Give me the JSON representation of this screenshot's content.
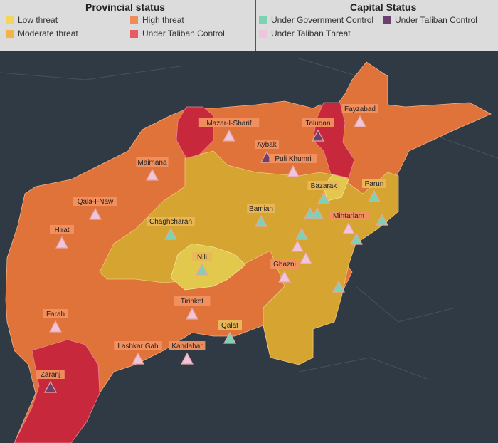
{
  "legend": {
    "provincial_title": "Provincial status",
    "capital_title": "Capital Status",
    "provincial_items": [
      {
        "label": "Low threat",
        "color": "#f2d55a"
      },
      {
        "label": "High threat",
        "color": "#f08c5a"
      },
      {
        "label": "Moderate threat",
        "color": "#f2b24a"
      },
      {
        "label": "Under Taliban Control",
        "color": "#e85a66"
      }
    ],
    "capital_items": [
      {
        "label": "Under Government Control",
        "color": "#7fd1b4"
      },
      {
        "label": "Under Taliban Control",
        "color": "#6b3f6e"
      },
      {
        "label": "Under Taliban Threat",
        "color": "#f0c4dc"
      }
    ]
  },
  "map": {
    "colors": {
      "water": "#2f3a45",
      "high": "#e0733a",
      "moderate": "#d5a431",
      "low": "#e2c94e",
      "taliban": "#c8283c"
    },
    "capitals": [
      {
        "name": "Fayzabad",
        "status": "threat"
      },
      {
        "name": "Mazar-I-Sharif",
        "status": "threat"
      },
      {
        "name": "Taluqan",
        "status": "taliban"
      },
      {
        "name": "Aybak",
        "status": "taliban"
      },
      {
        "name": "Puli Khumri",
        "status": "threat"
      },
      {
        "name": "Maimana",
        "status": "threat"
      },
      {
        "name": "Bazarak",
        "status": "government"
      },
      {
        "name": "Parun",
        "status": "government"
      },
      {
        "name": "Qala-I-Naw",
        "status": "threat"
      },
      {
        "name": "Bamian",
        "status": "government"
      },
      {
        "name": "Mihtarlam",
        "status": "threat"
      },
      {
        "name": "Hirat",
        "status": "threat"
      },
      {
        "name": "Chaghcharan",
        "status": "government"
      },
      {
        "name": "Nili",
        "status": "government"
      },
      {
        "name": "Ghazni",
        "status": "threat"
      },
      {
        "name": "Farah",
        "status": "threat"
      },
      {
        "name": "Tirinkot",
        "status": "threat"
      },
      {
        "name": "Qalat",
        "status": "government"
      },
      {
        "name": "Lashkar Gah",
        "status": "threat"
      },
      {
        "name": "Kandahar",
        "status": "threat"
      },
      {
        "name": "Zaranj",
        "status": "taliban"
      }
    ]
  }
}
